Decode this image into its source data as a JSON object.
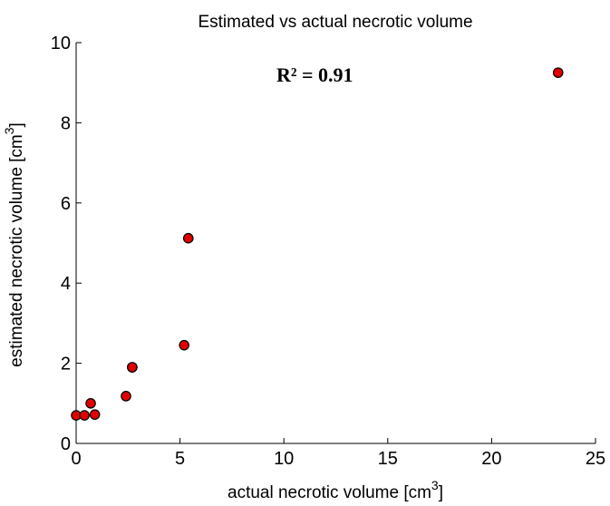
{
  "chart_data": {
    "type": "scatter",
    "title": "Estimated vs actual necrotic volume",
    "xlabel": "actual necrotic volume [cm",
    "xlabel_sup": "3",
    "xlabel_end": "]",
    "ylabel": "estimated necrotic volume [cm",
    "ylabel_sup": "3",
    "ylabel_end": "]",
    "xlim": [
      0,
      25
    ],
    "ylim": [
      0,
      10
    ],
    "xticks": [
      0,
      5,
      10,
      15,
      20,
      25
    ],
    "yticks": [
      0,
      2,
      4,
      6,
      8,
      10
    ],
    "grid": false,
    "annotation": "R² = 0.91",
    "marker_color": "#e00000",
    "series": [
      {
        "x": [
          0.0,
          0.4,
          0.7,
          0.9,
          2.4,
          2.7,
          2.7,
          5.2,
          5.4,
          23.2
        ],
        "y": [
          0.7,
          0.7,
          1.0,
          0.72,
          1.18,
          1.9,
          1.9,
          2.45,
          5.12,
          9.25
        ]
      }
    ]
  }
}
